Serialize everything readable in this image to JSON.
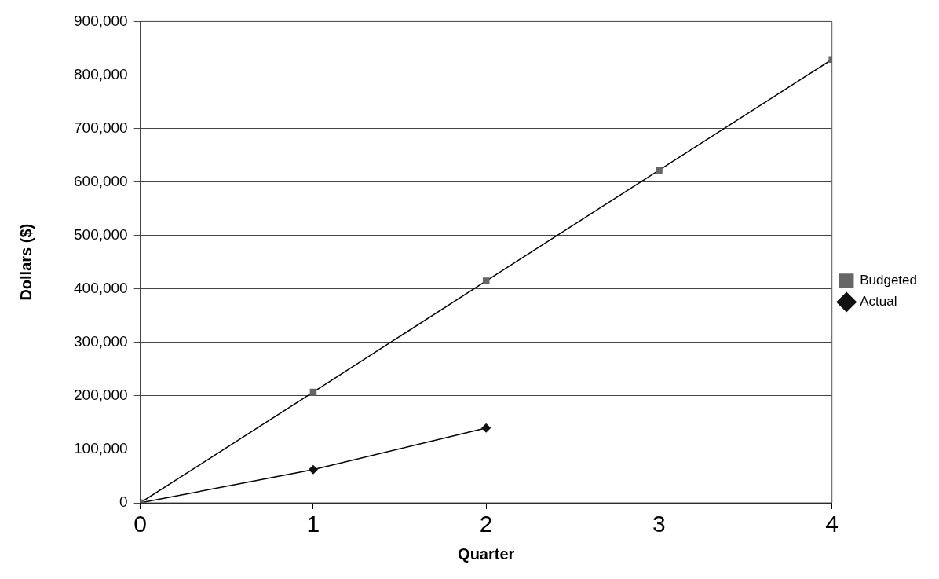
{
  "chart_data": {
    "type": "line",
    "xlabel": "Quarter",
    "ylabel": "Dollars ($)",
    "x": [
      0,
      1,
      2,
      3,
      4
    ],
    "series": [
      {
        "name": "Budgeted",
        "color": "#666666",
        "marker": "square",
        "values": [
          0,
          207000,
          415000,
          622000,
          829000
        ]
      },
      {
        "name": "Actual",
        "color": "#111111",
        "marker": "diamond",
        "values": [
          0,
          62000,
          140000,
          null,
          null
        ]
      }
    ],
    "xlim": [
      0,
      4
    ],
    "xticks": [
      0,
      1,
      2,
      3,
      4
    ],
    "ylim": [
      0,
      900000
    ],
    "yticks": [
      {
        "value": 0,
        "label": "0"
      },
      {
        "value": 100000,
        "label": "100,000"
      },
      {
        "value": 200000,
        "label": "200,000"
      },
      {
        "value": 300000,
        "label": "300,000"
      },
      {
        "value": 400000,
        "label": "400,000"
      },
      {
        "value": 500000,
        "label": "500,000"
      },
      {
        "value": 600000,
        "label": "600,000"
      },
      {
        "value": 700000,
        "label": "700,000"
      },
      {
        "value": 800000,
        "label": "800,000"
      },
      {
        "value": 900000,
        "label": "900,000"
      }
    ],
    "grid": "y",
    "legend": "right",
    "line_style": "solid"
  }
}
